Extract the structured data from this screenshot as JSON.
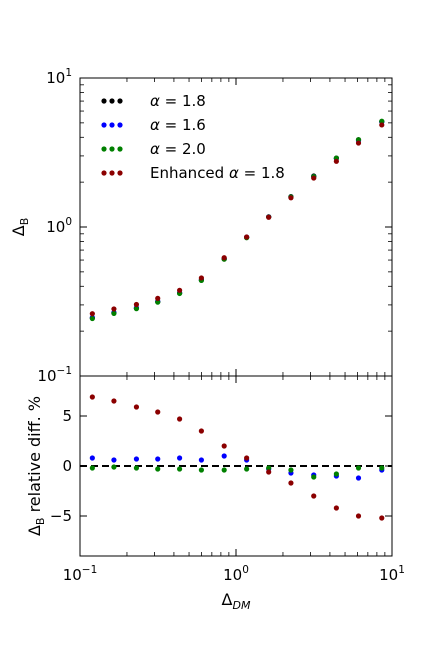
{
  "chart_data": [
    {
      "type": "scatter",
      "panel": "top",
      "xscale": "log",
      "yscale": "log",
      "xlim": [
        0.1,
        10
      ],
      "ylim": [
        0.1,
        10
      ],
      "ylabel_main": "Δ",
      "ylabel_sub": "B",
      "yticks": [
        {
          "base": "10",
          "exp": "1",
          "value": 10
        },
        {
          "base": "10",
          "exp": "0",
          "value": 1
        },
        {
          "base": "10",
          "exp": "−1",
          "value": 0.1
        }
      ],
      "legend_position": "top-left",
      "x": [
        0.12,
        0.165,
        0.23,
        0.315,
        0.435,
        0.6,
        0.84,
        1.17,
        1.62,
        2.25,
        3.15,
        4.4,
        6.1,
        8.6
      ],
      "series": [
        {
          "name": "α = 1.8",
          "name_symbol": "α",
          "name_rest": " = 1.8",
          "color": "#000000",
          "values": [
            0.245,
            0.265,
            0.285,
            0.315,
            0.36,
            0.44,
            0.61,
            0.85,
            1.17,
            1.6,
            2.2,
            2.9,
            3.85,
            5.1
          ]
        },
        {
          "name": "α = 1.6",
          "name_symbol": "α",
          "name_rest": " = 1.6",
          "color": "#0000ff",
          "values": [
            0.247,
            0.267,
            0.287,
            0.317,
            0.362,
            0.442,
            0.614,
            0.855,
            1.17,
            1.59,
            2.18,
            2.88,
            3.8,
            5.08
          ]
        },
        {
          "name": "α = 2.0",
          "name_symbol": "α",
          "name_rest": " = 2.0",
          "color": "#008000",
          "values": [
            0.243,
            0.263,
            0.283,
            0.313,
            0.358,
            0.438,
            0.608,
            0.848,
            1.168,
            1.59,
            2.18,
            2.9,
            3.85,
            5.13
          ]
        },
        {
          "name": "Enhanced α = 1.8",
          "name_prefix": "Enhanced ",
          "name_symbol": "α",
          "name_rest": " = 1.8",
          "color": "#8b0000",
          "values": [
            0.262,
            0.282,
            0.302,
            0.332,
            0.376,
            0.455,
            0.622,
            0.857,
            1.163,
            1.57,
            2.13,
            2.76,
            3.66,
            4.84
          ]
        }
      ]
    },
    {
      "type": "scatter",
      "panel": "bottom",
      "xscale": "log",
      "xlim": [
        0.1,
        10
      ],
      "ylim": [
        -9,
        9
      ],
      "ylabel_main": "Δ",
      "ylabel_sub": "B",
      "ylabel_rest": " relative diff. %",
      "xlabel_main": "Δ",
      "xlabel_sub": "DM",
      "yticks": [
        "5",
        "0",
        "−5"
      ],
      "ytick_values": [
        5,
        0,
        -5
      ],
      "xticks": [
        {
          "base": "10",
          "exp": "−1",
          "value": 0.1
        },
        {
          "base": "10",
          "exp": "0",
          "value": 1
        },
        {
          "base": "10",
          "exp": "1",
          "value": 10
        }
      ],
      "reference_line": {
        "y": 0,
        "style": "dashed"
      },
      "x": [
        0.12,
        0.165,
        0.23,
        0.315,
        0.435,
        0.6,
        0.84,
        1.17,
        1.62,
        2.25,
        3.15,
        4.4,
        6.1,
        8.6
      ],
      "series": [
        {
          "name": "α = 1.6",
          "color": "#0000ff",
          "values": [
            0.8,
            0.6,
            0.7,
            0.7,
            0.8,
            0.6,
            1.0,
            0.6,
            -0.3,
            -0.7,
            -0.9,
            -1.0,
            -1.2,
            -0.4
          ]
        },
        {
          "name": "α = 2.0",
          "color": "#008000",
          "values": [
            -0.2,
            -0.1,
            -0.2,
            -0.3,
            -0.3,
            -0.4,
            -0.4,
            -0.3,
            -0.2,
            -0.4,
            -1.1,
            -0.8,
            -0.2,
            -0.2
          ]
        },
        {
          "name": "Enhanced α = 1.8",
          "color": "#8b0000",
          "values": [
            6.9,
            6.5,
            5.9,
            5.4,
            4.7,
            3.5,
            2.0,
            0.8,
            -0.6,
            -1.7,
            -3.0,
            -4.2,
            -5.0,
            -5.2
          ]
        }
      ]
    }
  ]
}
